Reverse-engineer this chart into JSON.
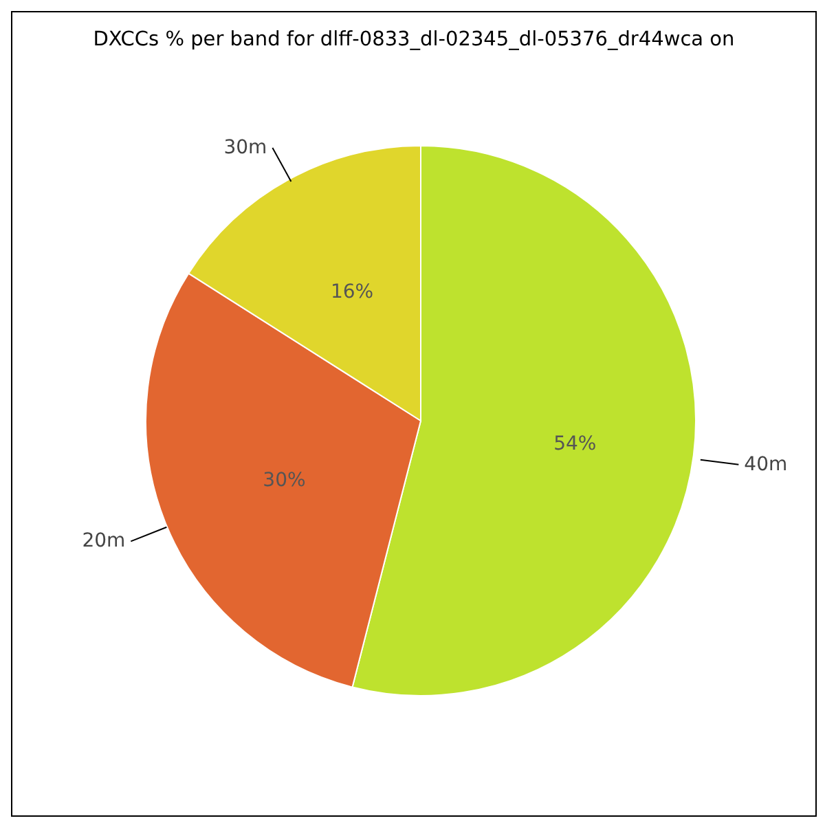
{
  "chart_data": {
    "type": "pie",
    "title": "DXCCs % per band for dlff-0833_dl-02345_dl-05376_dr44wca on",
    "categories": [
      "40m",
      "20m",
      "30m"
    ],
    "values": [
      54,
      30,
      16
    ],
    "colors": [
      "#bee22e",
      "#e26630",
      "#e0d62c"
    ],
    "value_labels": [
      "54%",
      "30%",
      "16%"
    ],
    "legend": false
  }
}
